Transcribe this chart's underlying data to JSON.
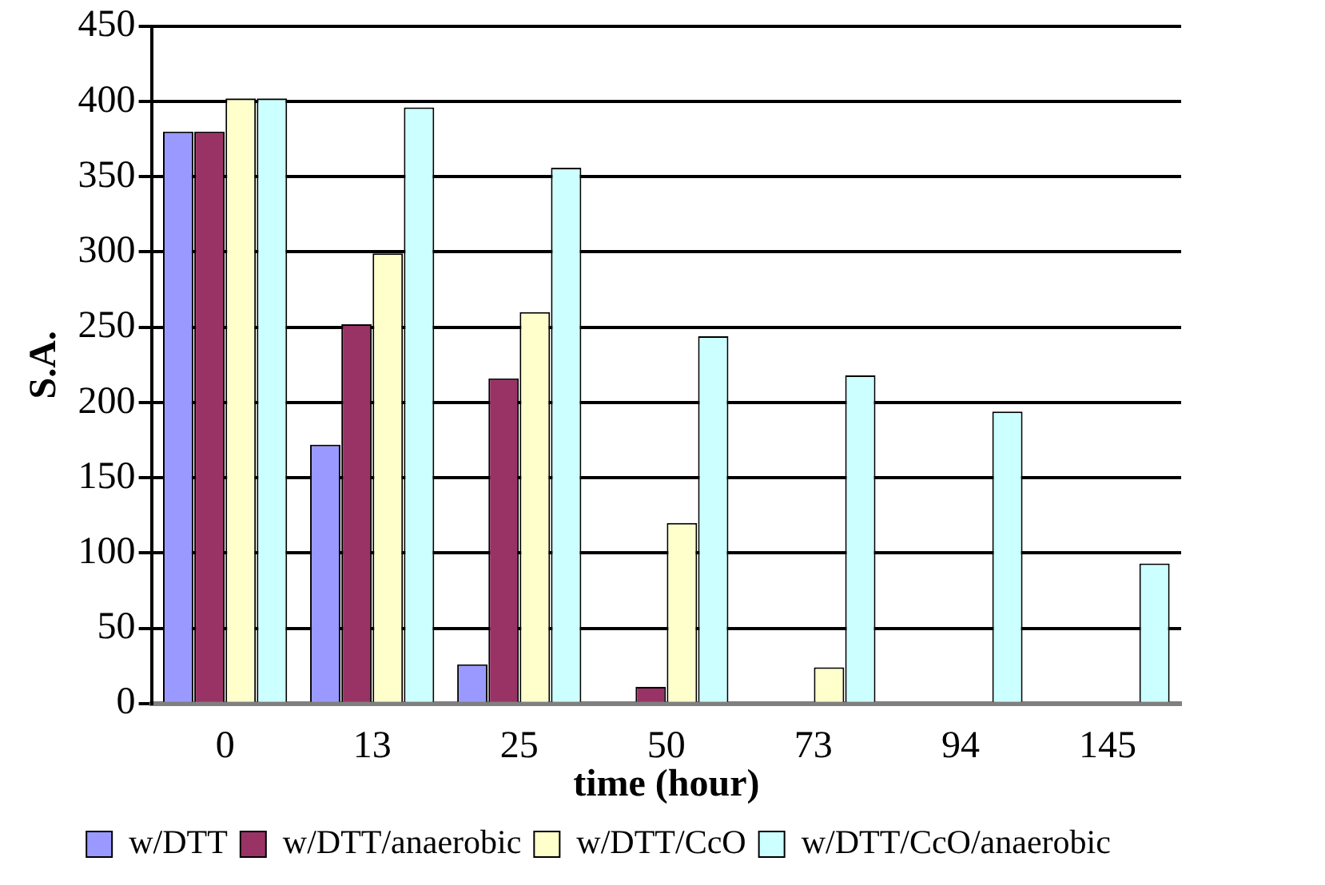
{
  "chart_data": {
    "type": "bar",
    "xlabel": "time (hour)",
    "ylabel": "S.A.",
    "categories": [
      "0",
      "13",
      "25",
      "50",
      "73",
      "94",
      "145"
    ],
    "series": [
      {
        "name": "w/DTT",
        "color": "#9999ff",
        "values": [
          380,
          172,
          26,
          0,
          0,
          0,
          0
        ]
      },
      {
        "name": "w/DTT/anaerobic",
        "color": "#993366",
        "values": [
          380,
          252,
          216,
          11,
          0,
          0,
          0
        ]
      },
      {
        "name": "w/DTT/CcO",
        "color": "#ffffcc",
        "values": [
          402,
          299,
          260,
          120,
          24,
          0,
          0
        ]
      },
      {
        "name": "w/DTT/CcO/anaerobic",
        "color": "#ccffff",
        "values": [
          402,
          396,
          356,
          244,
          218,
          194,
          93
        ]
      }
    ],
    "ylim": [
      0,
      450
    ],
    "yticks": [
      0,
      50,
      100,
      150,
      200,
      250,
      300,
      350,
      400,
      450
    ],
    "grid": "y",
    "legend": "bottom"
  }
}
